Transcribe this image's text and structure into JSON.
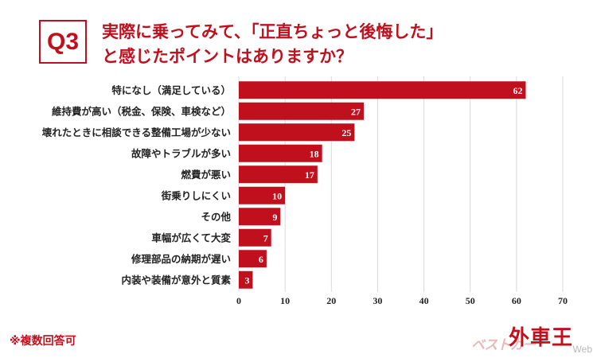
{
  "header": {
    "badge": "Q3",
    "title_line1": "実際に乗ってみて、「正直ちょっと後悔した」",
    "title_line2": "と感じたポイントはありますか？"
  },
  "footnote": "※複数回答可",
  "logo": {
    "brand": "外車王",
    "sub": "ベストカー",
    "web": "Web"
  },
  "colors": {
    "bar": "#c0101e",
    "title": "#c0101e",
    "grid": "#d9d9d9",
    "bar_label": "#ffffff"
  },
  "chart_data": {
    "type": "bar",
    "orientation": "horizontal",
    "categories": [
      "特になし（満足している）",
      "維持費が高い（税金、保険、車検など）",
      "壊れたときに相談できる整備工場が少ない",
      "故障やトラブルが多い",
      "燃費が悪い",
      "街乗りしにくい",
      "その他",
      "車幅が広くて大変",
      "修理部品の納期が遅い",
      "内装や装備が意外と質素"
    ],
    "values": [
      62,
      27,
      25,
      18,
      17,
      10,
      9,
      7,
      6,
      3
    ],
    "xlim": [
      0,
      70
    ],
    "xticks": [
      "0",
      "10",
      "20",
      "30",
      "40",
      "50",
      "60",
      "70"
    ],
    "grid": true,
    "data_labels": true
  }
}
